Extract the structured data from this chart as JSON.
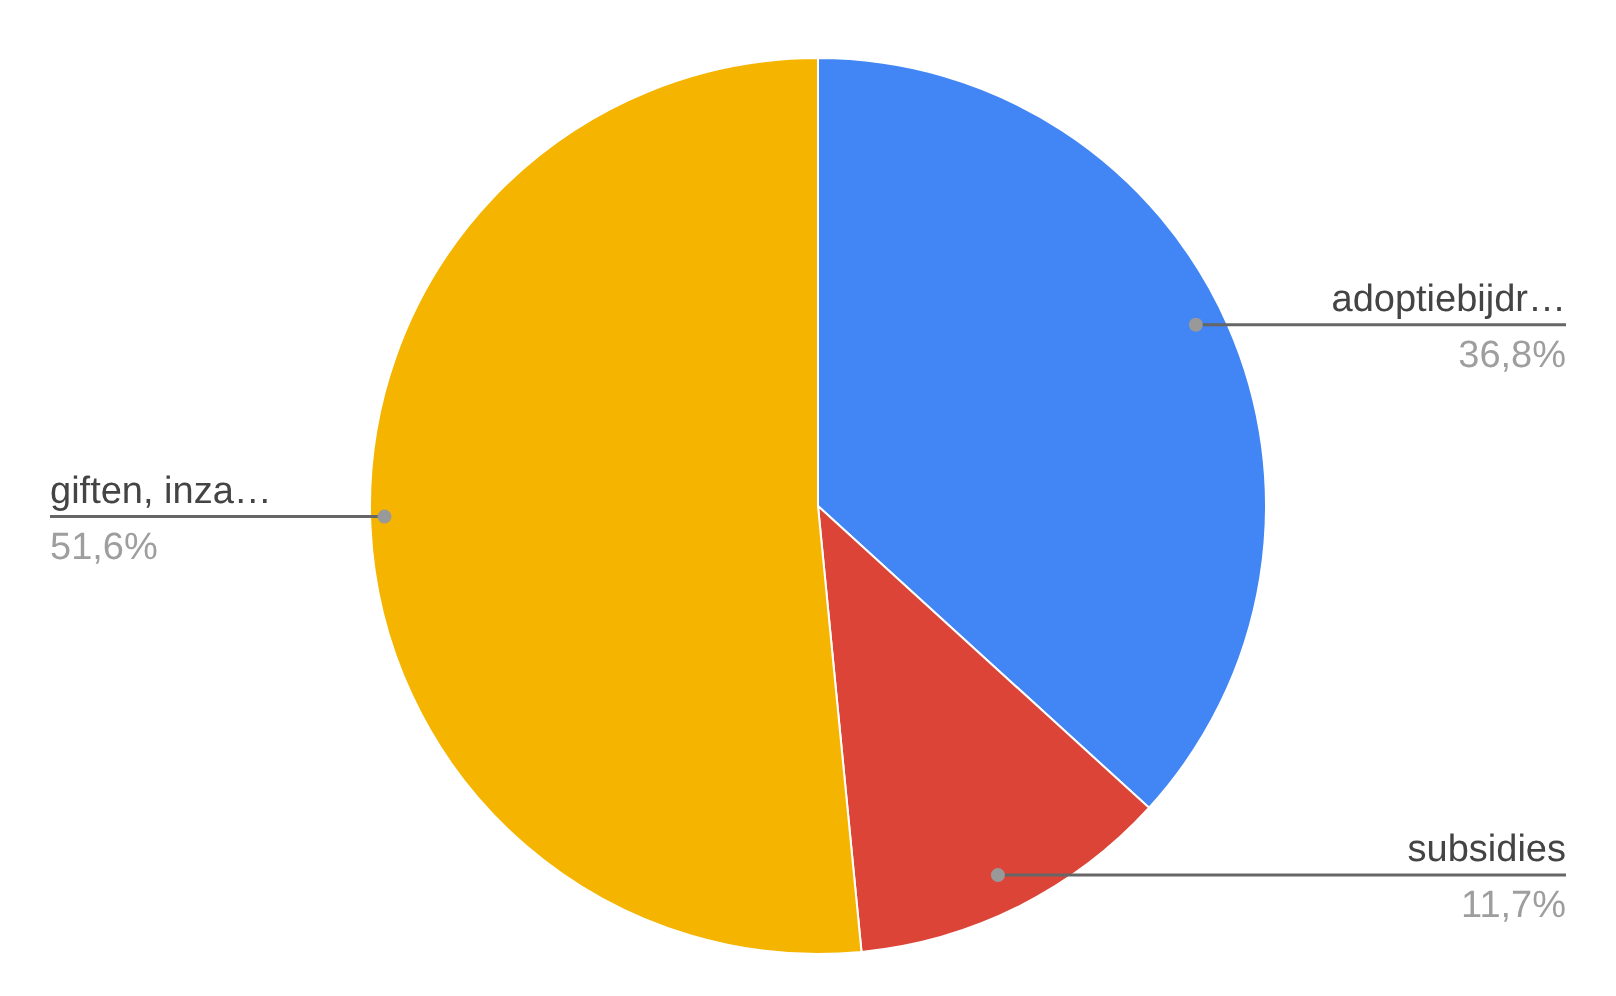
{
  "chart_data": {
    "type": "pie",
    "categories": [
      "adoptiebijdr…",
      "subsidies",
      "giften, inza…"
    ],
    "values": [
      36.8,
      11.7,
      51.6
    ],
    "colors": [
      "#4285f4",
      "#db4437",
      "#f4b400"
    ],
    "value_labels": [
      "36,8%",
      "11,7%",
      "51,6%"
    ],
    "legend": false
  }
}
